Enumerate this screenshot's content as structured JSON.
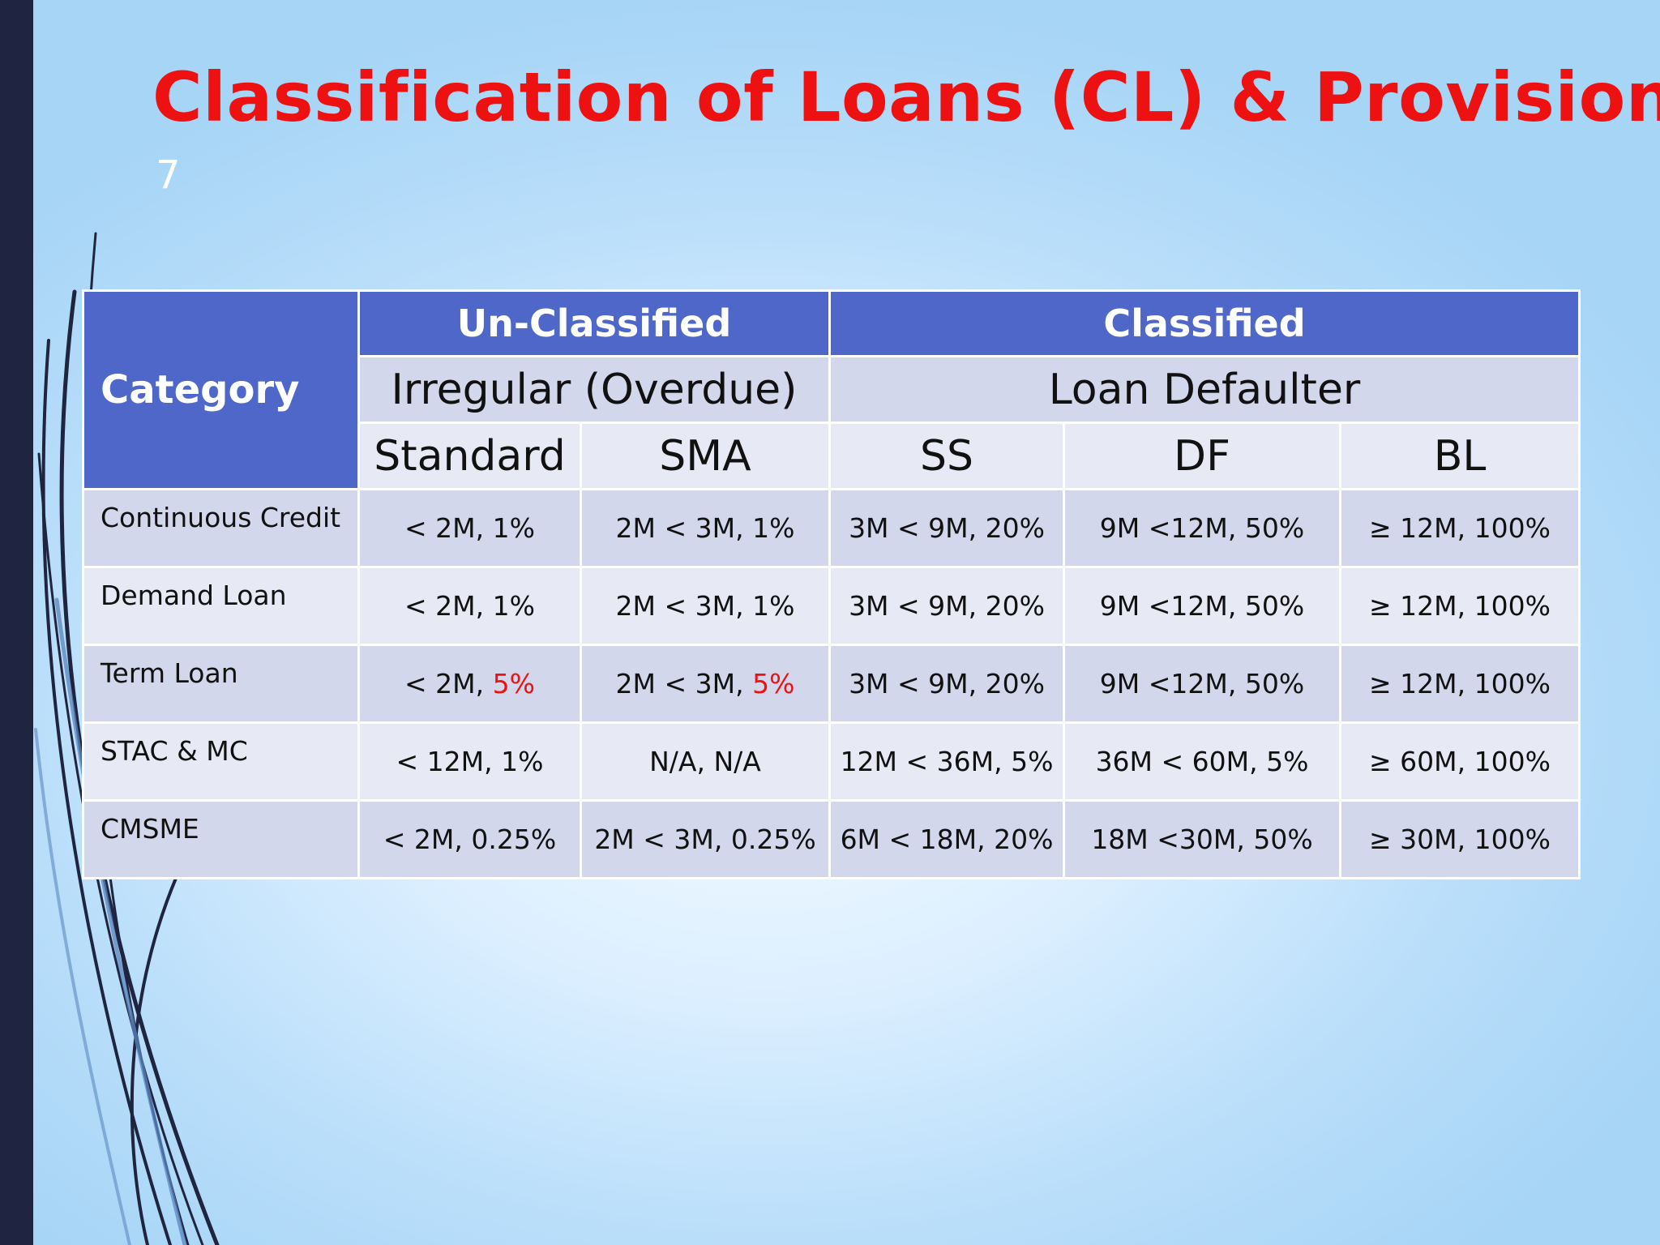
{
  "slide": {
    "title": "Classification of Loans (CL) & Provision",
    "number": "7"
  },
  "table": {
    "category_header": "Category",
    "group_headers": [
      "Un-Classified",
      "Classified"
    ],
    "sub_headers": [
      "Irregular (Overdue)",
      "Loan Defaulter"
    ],
    "columns": [
      "Standard",
      "SMA",
      "SS",
      "DF",
      "BL"
    ],
    "rows": [
      {
        "category": "Continuous Credit",
        "cells": [
          {
            "range": "< 2M, ",
            "rate": "1%"
          },
          {
            "range": "2M < 3M, ",
            "rate": "1%"
          },
          {
            "range": "3M < 9M, ",
            "rate": "20%"
          },
          {
            "range": "9M <12M, ",
            "rate": "50%"
          },
          {
            "range": "≥ 12M, ",
            "rate": "100%"
          }
        ]
      },
      {
        "category": "Demand Loan",
        "cells": [
          {
            "range": "< 2M, ",
            "rate": "1%"
          },
          {
            "range": "2M < 3M, ",
            "rate": "1%"
          },
          {
            "range": "3M < 9M, ",
            "rate": "20%"
          },
          {
            "range": "9M <12M, ",
            "rate": "50%"
          },
          {
            "range": "≥ 12M, ",
            "rate": "100%"
          }
        ]
      },
      {
        "category": "Term Loan",
        "cells": [
          {
            "range": "< 2M, ",
            "rate": "5%",
            "highlight": true
          },
          {
            "range": "2M < 3M, ",
            "rate": "5%",
            "highlight": true
          },
          {
            "range": "3M < 9M, ",
            "rate": "20%"
          },
          {
            "range": "9M <12M, ",
            "rate": "50%"
          },
          {
            "range": "≥ 12M, ",
            "rate": "100%"
          }
        ]
      },
      {
        "category": "STAC & MC",
        "cells": [
          {
            "range": "< 12M, ",
            "rate": "1%"
          },
          {
            "range": "N/A, ",
            "rate": "N/A"
          },
          {
            "range": "12M < 36M, ",
            "rate": "5%"
          },
          {
            "range": "36M < 60M, ",
            "rate": "5%"
          },
          {
            "range": "≥ 60M, ",
            "rate": "100%"
          }
        ]
      },
      {
        "category": "CMSME",
        "cells": [
          {
            "range": "< 2M, ",
            "rate": "0.25%"
          },
          {
            "range": "2M < 3M, ",
            "rate": "0.25%"
          },
          {
            "range": "6M < 18M, ",
            "rate": "20%"
          },
          {
            "range": "18M <30M, ",
            "rate": "50%"
          },
          {
            "range": "≥ 30M, ",
            "rate": "100%"
          }
        ]
      }
    ]
  },
  "colors": {
    "title": "#ee1111",
    "header_blue": "#4f67c8",
    "row_dark": "#d2d7ec",
    "row_light": "#e7e9f4",
    "highlight": "#ee1111",
    "left_bar": "#1f2540"
  }
}
